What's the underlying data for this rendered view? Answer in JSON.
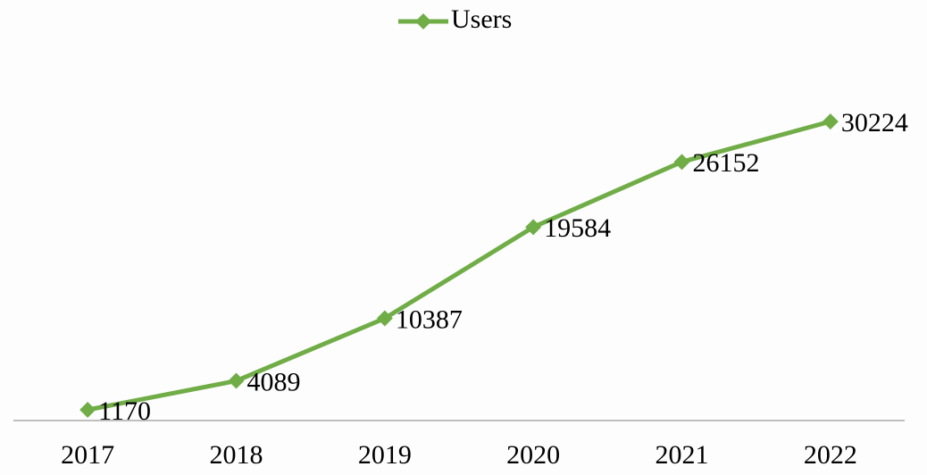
{
  "chart_data": {
    "type": "line",
    "categories": [
      "2017",
      "2018",
      "2019",
      "2020",
      "2021",
      "2022"
    ],
    "series": [
      {
        "name": "Users",
        "color": "#70ad47",
        "values": [
          1170,
          4089,
          10387,
          19584,
          26152,
          30224
        ]
      }
    ],
    "ylim": [
      0,
      35000
    ],
    "legend": "top"
  }
}
